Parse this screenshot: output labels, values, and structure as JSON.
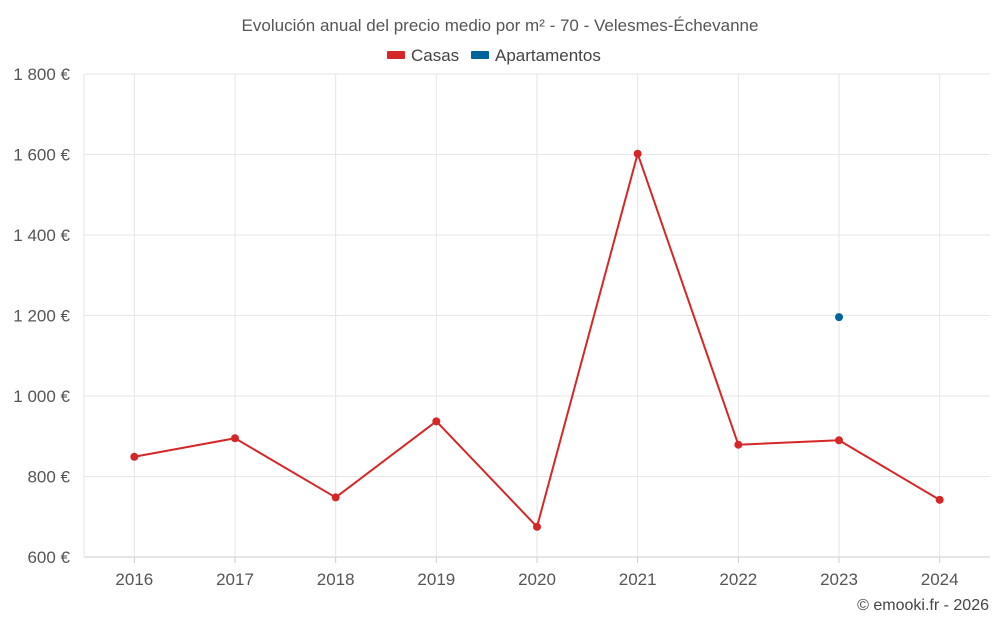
{
  "chart_data": {
    "type": "line",
    "title": "Evolución anual del precio medio por m² - 70 - Velesmes-Échevanne",
    "categories": [
      "2016",
      "2017",
      "2018",
      "2019",
      "2020",
      "2021",
      "2022",
      "2023",
      "2024"
    ],
    "series": [
      {
        "name": "Casas",
        "color": "#d62728",
        "values": [
          849,
          895,
          748,
          937,
          675,
          1602,
          879,
          890,
          742
        ]
      },
      {
        "name": "Apartamentos",
        "color": "#00639a",
        "values": [
          null,
          null,
          null,
          null,
          null,
          null,
          null,
          1196,
          null
        ]
      }
    ],
    "ylim": [
      600,
      1800
    ],
    "yticks": [
      600,
      800,
      1000,
      1200,
      1400,
      1600,
      1800
    ],
    "ytick_labels": [
      "600 €",
      "800 €",
      "1 000 €",
      "1 200 €",
      "1 400 €",
      "1 600 €",
      "1 800 €"
    ],
    "xlabel": "",
    "ylabel": "",
    "legend_position": "top-center",
    "grid": true
  },
  "credit": "© emooki.fr - 2026"
}
